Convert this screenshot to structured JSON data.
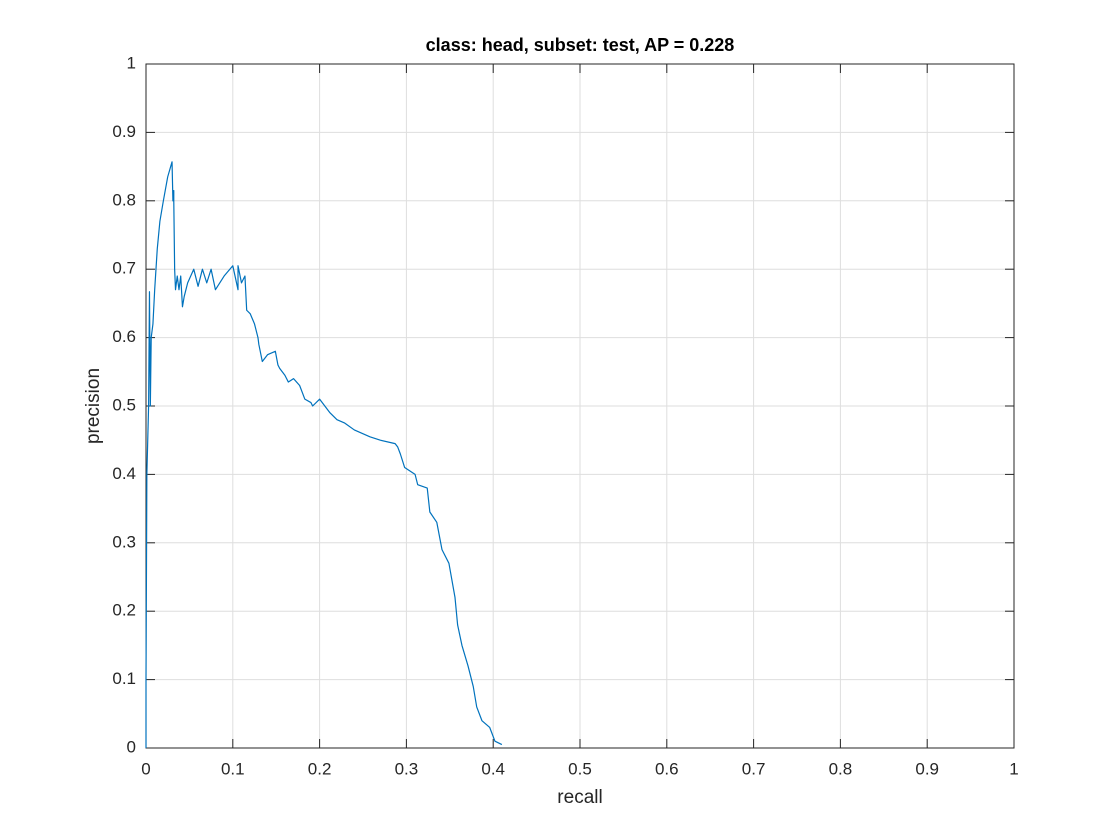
{
  "chart_data": {
    "type": "line",
    "title": "class: head, subset: test, AP = 0.228",
    "xlabel": "recall",
    "ylabel": "precision",
    "x": [
      0,
      0,
      0.001,
      0.003,
      0.004,
      0.005,
      0.006,
      0.008,
      0.01,
      0.013,
      0.016,
      0.02,
      0.025,
      0.03,
      0.031,
      0.032,
      0.032,
      0.033,
      0.034,
      0.036,
      0.038,
      0.04,
      0.042,
      0.044,
      0.048,
      0.055,
      0.06,
      0.065,
      0.07,
      0.075,
      0.08,
      0.09,
      0.1,
      0.106,
      0.106,
      0.11,
      0.114,
      0.116,
      0.12,
      0.125,
      0.129,
      0.13,
      0.134,
      0.14,
      0.149,
      0.152,
      0.154,
      0.16,
      0.164,
      0.17,
      0.177,
      0.18,
      0.183,
      0.19,
      0.192,
      0.2,
      0.212,
      0.22,
      0.229,
      0.24,
      0.258,
      0.27,
      0.287,
      0.29,
      0.293,
      0.298,
      0.31,
      0.313,
      0.324,
      0.327,
      0.335,
      0.341,
      0.349,
      0.356,
      0.359,
      0.364,
      0.371,
      0.377,
      0.381,
      0.387,
      0.396,
      0.402,
      0.41
    ],
    "values": [
      0,
      0.1,
      0.4,
      0.5,
      0.667,
      0.5,
      0.6,
      0.62,
      0.67,
      0.73,
      0.77,
      0.8,
      0.835,
      0.857,
      0.8,
      0.815,
      0.8,
      0.7,
      0.67,
      0.69,
      0.67,
      0.69,
      0.645,
      0.66,
      0.68,
      0.7,
      0.675,
      0.7,
      0.68,
      0.7,
      0.67,
      0.69,
      0.705,
      0.67,
      0.705,
      0.68,
      0.69,
      0.64,
      0.635,
      0.62,
      0.6,
      0.59,
      0.565,
      0.575,
      0.58,
      0.56,
      0.555,
      0.545,
      0.535,
      0.54,
      0.53,
      0.52,
      0.51,
      0.505,
      0.5,
      0.51,
      0.49,
      0.48,
      0.475,
      0.465,
      0.455,
      0.45,
      0.445,
      0.44,
      0.43,
      0.41,
      0.4,
      0.385,
      0.38,
      0.345,
      0.33,
      0.29,
      0.27,
      0.22,
      0.18,
      0.15,
      0.12,
      0.09,
      0.06,
      0.04,
      0.03,
      0.01,
      0.005
    ],
    "color": "#0072bd",
    "xlim": [
      0,
      1
    ],
    "ylim": [
      0,
      1
    ],
    "xticks": [
      0,
      0.1,
      0.2,
      0.3,
      0.4,
      0.5,
      0.6,
      0.7,
      0.8,
      0.9,
      1
    ],
    "yticks": [
      0,
      0.1,
      0.2,
      0.3,
      0.4,
      0.5,
      0.6,
      0.7,
      0.8,
      0.9,
      1
    ],
    "grid": true
  }
}
